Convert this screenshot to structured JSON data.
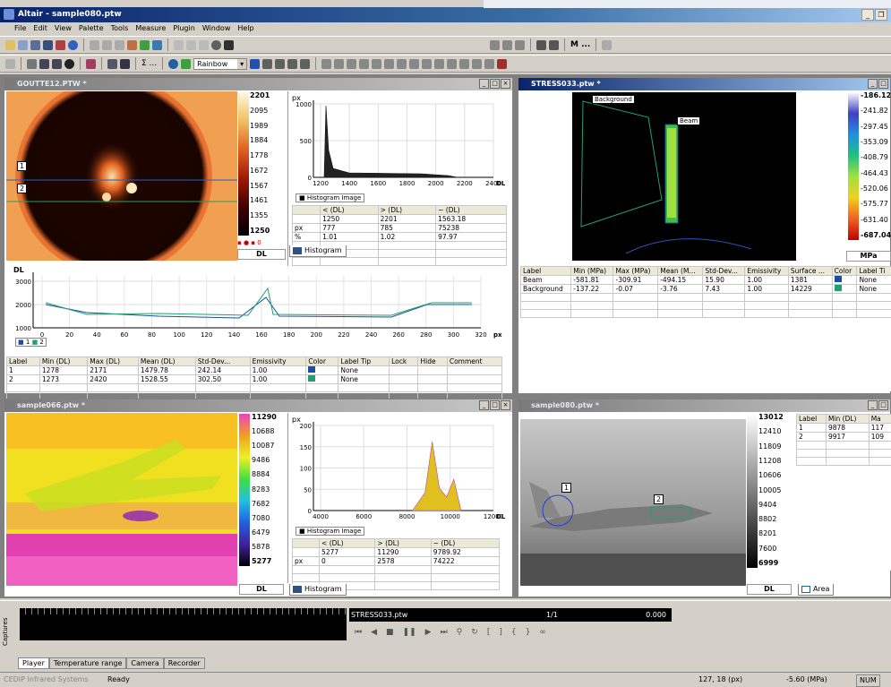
{
  "app": {
    "title": "Altair - sample080.ptw"
  },
  "menu": [
    "File",
    "Edit",
    "View",
    "Palette",
    "Tools",
    "Measure",
    "Plugin",
    "Window",
    "Help"
  ],
  "toolbar": {
    "palette_select": "Rainbow",
    "m_label": "M ...",
    "sigma_label": "Σ ..."
  },
  "windows": {
    "goutte": {
      "title": "GOUTTE12.PTW *",
      "scale": [
        "2201",
        "2095",
        "1989",
        "1884",
        "1778",
        "1672",
        "1567",
        "1461",
        "1355",
        "1250"
      ],
      "unit": "DL",
      "hist_ylabel": "px",
      "hist_yticks": [
        "1000",
        "500",
        "0"
      ],
      "hist_xticks": [
        "1200",
        "1400",
        "1600",
        "1800",
        "2000",
        "2200",
        "2400"
      ],
      "hist_xunit": "DL",
      "hist_legend": "Histogram Image",
      "stats_headers": [
        "",
        "< (DL)",
        "> (DL)",
        "~ (DL)"
      ],
      "stats_rows": [
        [
          "",
          "1250",
          "2201",
          "1563.18"
        ],
        [
          "px",
          "777",
          "785",
          "75238"
        ],
        [
          "%",
          "1.01",
          "1.02",
          "97.97"
        ]
      ],
      "tab": "Histogram",
      "profile_ylabel": "DL",
      "profile_yticks": [
        "3000",
        "2000",
        "1000"
      ],
      "profile_xticks": [
        "0",
        "20",
        "40",
        "60",
        "80",
        "100",
        "120",
        "140",
        "160",
        "180",
        "200",
        "220",
        "240",
        "260",
        "280",
        "300",
        "320"
      ],
      "profile_xunit": "px",
      "profile_legend": [
        "1",
        "2"
      ],
      "lines_headers": [
        "Label",
        "Min (DL)",
        "Max (DL)",
        "Mean (DL)",
        "Std-Dev...",
        "Emissivity",
        "Color",
        "Label Tip",
        "Lock",
        "Hide",
        "Comment"
      ],
      "lines_rows": [
        [
          "1",
          "1278",
          "2171",
          "1479.78",
          "242.14",
          "1.00",
          "#1a4fa0",
          "None",
          "",
          "",
          ""
        ],
        [
          "2",
          "1273",
          "2420",
          "1528.55",
          "302.50",
          "1.00",
          "#20a070",
          "None",
          "",
          "",
          ""
        ]
      ],
      "markers": [
        "1",
        "2"
      ]
    },
    "stress": {
      "title": "STRESS033.ptw *",
      "scale": [
        "-186.12",
        "-241.82",
        "-297.45",
        "-353.09",
        "-408.79",
        "-464.43",
        "-520.06",
        "-575.77",
        "-631.40",
        "-687.04"
      ],
      "unit": "MPa",
      "roi_labels": [
        "Background",
        "Beam"
      ],
      "headers": [
        "Label",
        "Min (MPa)",
        "Max (MPa)",
        "Mean (M...",
        "Std-Dev...",
        "Emissivity",
        "Surface ...",
        "Color",
        "Label Ti"
      ],
      "rows": [
        [
          "Beam",
          "-581.81",
          "-309.91",
          "-494.15",
          "15.90",
          "1.00",
          "1381",
          "#1a4fa0",
          "None"
        ],
        [
          "Background",
          "-137.22",
          "-0.07",
          "-3.76",
          "7.43",
          "1.00",
          "14229",
          "#20a070",
          "None"
        ]
      ]
    },
    "sample066": {
      "title": "sample066.ptw *",
      "scale": [
        "11290",
        "10688",
        "10087",
        "9486",
        "8884",
        "8283",
        "7682",
        "7080",
        "6479",
        "5878",
        "5277"
      ],
      "unit": "DL",
      "hist_ylabel": "px",
      "hist_yticks": [
        "200",
        "150",
        "100",
        "50",
        "0"
      ],
      "hist_xticks": [
        "4000",
        "6000",
        "8000",
        "10000",
        "12000"
      ],
      "hist_xunit": "DL",
      "hist_legend": "Histogram Image",
      "stats_headers": [
        "",
        "< (DL)",
        "> (DL)",
        "~ (DL)"
      ],
      "stats_rows": [
        [
          "",
          "5277",
          "11290",
          "9789.92"
        ],
        [
          "px",
          "0",
          "2578",
          "74222"
        ]
      ],
      "tab": "Histogram"
    },
    "sample080": {
      "title": "sample080.ptw *",
      "scale": [
        "13012",
        "12410",
        "11809",
        "11208",
        "10606",
        "10005",
        "9404",
        "8802",
        "8201",
        "7600",
        "6999"
      ],
      "unit": "DL",
      "markers": [
        "1",
        "2"
      ],
      "headers": [
        "Label",
        "Min (DL)",
        "Ma"
      ],
      "rows": [
        [
          "1",
          "9878",
          "117"
        ],
        [
          "2",
          "9917",
          "109"
        ]
      ],
      "tab": "Area"
    }
  },
  "player": {
    "file": "STRESS033.ptw",
    "frame": "1/1",
    "time": "0.000",
    "side_label": "Captures",
    "tabs": [
      "Player",
      "Temperature range",
      "Camera",
      "Recorder"
    ]
  },
  "status": {
    "company": "CEDIP Infrared Systems",
    "state": "Ready",
    "coords": "127, 18 (px)",
    "value": "-5.60 (MPa)",
    "num": "NUM"
  }
}
